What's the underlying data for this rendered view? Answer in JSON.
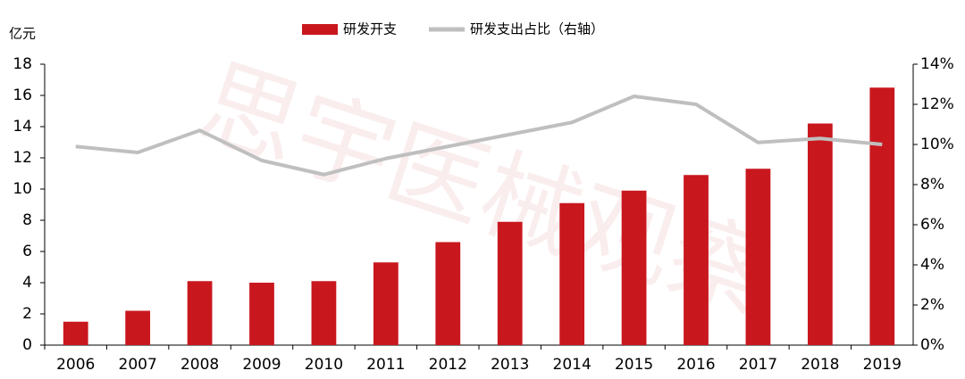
{
  "chart_data": {
    "type": "bar",
    "y_label": "亿元",
    "watermark": "思宇医械观察",
    "categories": [
      "2006",
      "2007",
      "2008",
      "2009",
      "2010",
      "2011",
      "2012",
      "2013",
      "2014",
      "2015",
      "2016",
      "2017",
      "2018",
      "2019"
    ],
    "series": [
      {
        "name": "研发开支",
        "type": "bar",
        "color": "#c9171e",
        "values": [
          1.5,
          2.2,
          4.1,
          4.0,
          4.1,
          5.3,
          6.6,
          7.9,
          9.1,
          9.9,
          10.9,
          11.3,
          14.2,
          16.5
        ]
      },
      {
        "name": "研发支出占比（右轴）",
        "type": "line",
        "axis": "y2",
        "color": "#bfbfbf",
        "values": [
          9.9,
          9.6,
          10.7,
          9.2,
          8.5,
          9.3,
          9.9,
          10.5,
          11.1,
          12.4,
          12.0,
          10.1,
          10.3,
          10.0
        ]
      }
    ],
    "ylim": [
      0,
      18
    ],
    "yticks": [
      0,
      2,
      4,
      6,
      8,
      10,
      12,
      14,
      16,
      18
    ],
    "y2lim": [
      0,
      14
    ],
    "y2ticks": [
      {
        "value": 0,
        "label": "0%"
      },
      {
        "value": 2,
        "label": "2%"
      },
      {
        "value": 4,
        "label": "4%"
      },
      {
        "value": 6,
        "label": "6%"
      },
      {
        "value": 8,
        "label": "8%"
      },
      {
        "value": 10,
        "label": "10%"
      },
      {
        "value": 12,
        "label": "12%"
      },
      {
        "value": 14,
        "label": "14%"
      }
    ],
    "grid": false
  }
}
